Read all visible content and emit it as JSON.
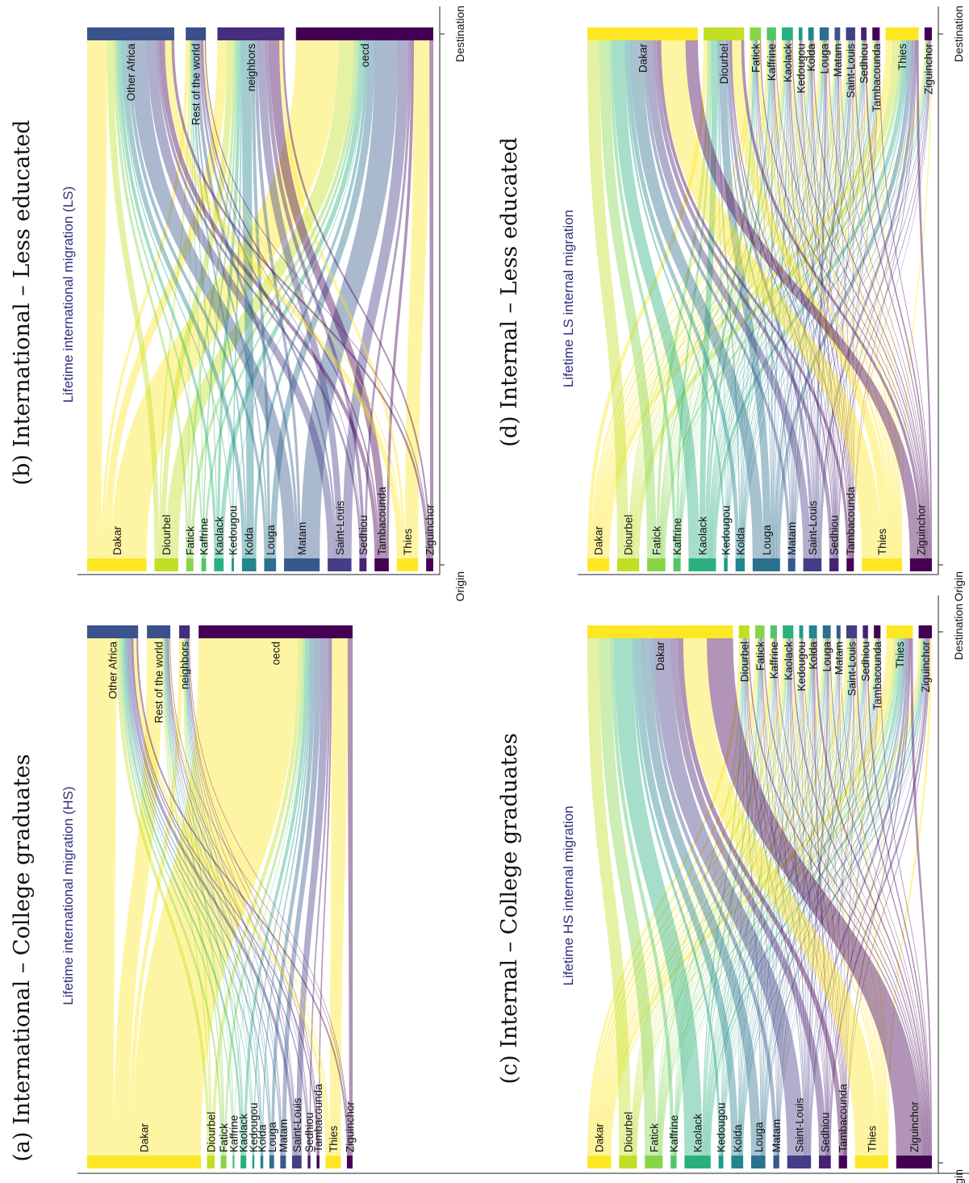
{
  "palette": {
    "Dakar": "#fde725",
    "Diourbel": "#c2df23",
    "Fatick": "#86d549",
    "Kaffrine": "#52c569",
    "Kaolack": "#2ab07f",
    "Kedougou": "#1e9b8a",
    "Kolda": "#25858e",
    "Louga": "#2d708e",
    "Matam": "#38588c",
    "Saint-Louis": "#433e85",
    "Sedhiou": "#482173",
    "Tambacounda": "#440154",
    "Thies": "#fde725",
    "Ziguinchor": "#440154",
    "Other Africa": "#3b528b",
    "Rest of the world": "#3b4f8a",
    "neighbors": "#472d7b",
    "oecd": "#440154"
  },
  "chart_data": [
    {
      "id": "a",
      "type": "sankey",
      "title": "(a) International – College graduates",
      "subtitle": "Lifetime international migration (HS)",
      "axis_labels": [
        "Origin",
        "Destination"
      ],
      "origins": [
        "Dakar",
        "Diourbel",
        "Fatick",
        "Kaffrine",
        "Kaolack",
        "Kedougou",
        "Kolda",
        "Louga",
        "Matam",
        "Saint-Louis",
        "Sedhiou",
        "Tambacounda",
        "Thies",
        "Ziguinchor"
      ],
      "origin_values": [
        120,
        8,
        6,
        2,
        6,
        2,
        3,
        5,
        6,
        10,
        3,
        3,
        16,
        6
      ],
      "destinations": [
        "Other Africa",
        "Rest of the world",
        "neighbors",
        "oecd"
      ],
      "destination_values": [
        48,
        22,
        10,
        145
      ],
      "flows": [
        [
          28,
          16,
          4,
          72
        ],
        [
          3,
          1,
          1,
          3
        ],
        [
          2,
          1,
          1,
          2
        ],
        [
          1,
          0.3,
          0.3,
          0.4
        ],
        [
          2,
          1,
          0.5,
          2.5
        ],
        [
          0.5,
          0.3,
          0.3,
          0.9
        ],
        [
          1,
          0.5,
          0.5,
          1
        ],
        [
          1,
          0.5,
          0.5,
          3
        ],
        [
          1,
          0.5,
          0.5,
          4
        ],
        [
          3,
          1,
          0.5,
          5.5
        ],
        [
          1,
          0.3,
          0.5,
          1.2
        ],
        [
          1,
          0.5,
          0.5,
          1
        ],
        [
          3,
          1,
          0.5,
          11.5
        ],
        [
          1.5,
          0.5,
          0.5,
          3.5
        ]
      ]
    },
    {
      "id": "b",
      "type": "sankey",
      "title": "(b) International – Less educated",
      "subtitle": "Lifetime international migration (LS)",
      "axis_labels": [
        "Origin",
        "Destination"
      ],
      "origins": [
        "Dakar",
        "Diourbel",
        "Fatick",
        "Kaffrine",
        "Kaolack",
        "Kedougou",
        "Kolda",
        "Louga",
        "Matam",
        "Saint-Louis",
        "Sedhiou",
        "Tambacounda",
        "Thies",
        "Ziguinchor"
      ],
      "origin_values": [
        25,
        10,
        3,
        2,
        4,
        1,
        6,
        5,
        15,
        10,
        3,
        6,
        9,
        3
      ],
      "destinations": [
        "Other Africa",
        "Rest of the world",
        "neighbors",
        "oecd"
      ],
      "destination_values": [
        26,
        6,
        20,
        41
      ],
      "flows": [
        [
          6,
          1,
          3,
          15
        ],
        [
          2,
          0.5,
          2,
          5.5
        ],
        [
          0.8,
          0.2,
          0.8,
          1.2
        ],
        [
          0.5,
          0.2,
          0.5,
          0.8
        ],
        [
          1,
          0.3,
          1,
          1.7
        ],
        [
          0.3,
          0.1,
          0.4,
          0.2
        ],
        [
          1.5,
          0.5,
          3,
          1
        ],
        [
          1,
          0.5,
          1,
          2.5
        ],
        [
          5,
          1,
          1,
          8
        ],
        [
          3,
          0.7,
          2.5,
          3.8
        ],
        [
          0.8,
          0.2,
          1.2,
          0.8
        ],
        [
          1.5,
          0.5,
          3,
          1
        ],
        [
          2,
          0.5,
          1,
          5.5
        ],
        [
          0.8,
          0.3,
          0.6,
          1.3
        ]
      ]
    },
    {
      "id": "c",
      "type": "sankey",
      "title": "(c) Internal – College graduates",
      "subtitle": "Lifetime HS internal migration",
      "axis_labels": [
        "Origin",
        "Destination"
      ],
      "origins": [
        "Dakar",
        "Diourbel",
        "Fatick",
        "Kaffrine",
        "Kaolack",
        "Kedougou",
        "Kolda",
        "Louga",
        "Matam",
        "Saint-Louis",
        "Sedhiou",
        "Tambacounda",
        "Thies",
        "Ziguinchor"
      ],
      "origin_values": [
        20,
        15,
        15,
        5,
        22,
        4,
        10,
        12,
        5,
        20,
        10,
        7,
        28,
        30
      ],
      "destinations": [
        "Dakar",
        "Diourbel",
        "Fatick",
        "Kaffrine",
        "Kaolack",
        "Kedougou",
        "Kolda",
        "Louga",
        "Matam",
        "Saint-Louis",
        "Sedhiou",
        "Tambacounda",
        "Thies",
        "Ziguinchor"
      ],
      "destination_values": [
        110,
        8,
        7,
        5,
        8,
        3,
        6,
        6,
        3,
        8,
        4,
        5,
        20,
        10
      ],
      "flows": [
        [
          0,
          2,
          2,
          2,
          2,
          1,
          1,
          1,
          1,
          2,
          1,
          1,
          3,
          1
        ],
        [
          10,
          0,
          0.5,
          0.5,
          0.5,
          0.2,
          0.3,
          0.5,
          0.2,
          0.5,
          0.2,
          0.3,
          1,
          0.3
        ],
        [
          10,
          0.5,
          0,
          0.5,
          1,
          0.2,
          0.3,
          0.3,
          0.2,
          0.5,
          0.2,
          0.3,
          1,
          0.5
        ],
        [
          3,
          0.2,
          0.2,
          0,
          0.5,
          0.1,
          0.1,
          0.2,
          0.1,
          0.2,
          0.1,
          0.1,
          0.5,
          0.1
        ],
        [
          15,
          0.8,
          1,
          0.5,
          0,
          0.3,
          0.5,
          0.5,
          0.2,
          0.8,
          0.3,
          0.4,
          1.2,
          0.5
        ],
        [
          2,
          0.2,
          0.2,
          0.1,
          0.3,
          0,
          0.2,
          0.1,
          0.1,
          0.2,
          0.1,
          0.2,
          0.2,
          0.2
        ],
        [
          6,
          0.3,
          0.3,
          0.2,
          0.5,
          0.2,
          0,
          0.3,
          0.2,
          0.3,
          0.5,
          0.3,
          0.5,
          0.6
        ],
        [
          8,
          0.5,
          0.3,
          0.2,
          0.5,
          0.1,
          0.2,
          0,
          0.2,
          0.8,
          0.1,
          0.2,
          0.7,
          0.2
        ],
        [
          3,
          0.2,
          0.1,
          0.1,
          0.2,
          0.1,
          0.1,
          0.3,
          0,
          0.4,
          0.1,
          0.1,
          0.2,
          0.1
        ],
        [
          14,
          0.5,
          0.5,
          0.3,
          0.6,
          0.3,
          0.4,
          1,
          0.5,
          0,
          0.3,
          0.3,
          1,
          0.3
        ],
        [
          6,
          0.2,
          0.2,
          0.2,
          0.3,
          0.1,
          0.8,
          0.1,
          0.1,
          0.3,
          0,
          0.2,
          0.5,
          1
        ],
        [
          4,
          0.3,
          0.2,
          0.2,
          0.3,
          0.3,
          0.2,
          0.1,
          0.2,
          0.3,
          0.2,
          0,
          0.4,
          0.3
        ],
        [
          20,
          1,
          1,
          0.5,
          1,
          0.3,
          0.5,
          0.8,
          0.3,
          1,
          0.3,
          0.3,
          0,
          1
        ],
        [
          22,
          0.8,
          0.7,
          0.5,
          0.8,
          0.3,
          1,
          0.5,
          0.3,
          0.8,
          0.9,
          0.4,
          1,
          0
        ]
      ]
    },
    {
      "id": "d",
      "type": "sankey",
      "title": "(d) Internal – Less educated",
      "subtitle": "Lifetime LS internal migration",
      "axis_labels": [
        "Origin",
        "Destination"
      ],
      "origins": [
        "Dakar",
        "Diourbel",
        "Fatick",
        "Kaffrine",
        "Kaolack",
        "Kedougou",
        "Kolda",
        "Louga",
        "Matam",
        "Saint-Louis",
        "Sedhiou",
        "Tambacounda",
        "Thies",
        "Ziguinchor"
      ],
      "origin_values": [
        12,
        12,
        10,
        4,
        15,
        2,
        5,
        15,
        4,
        10,
        5,
        4,
        22,
        12
      ],
      "destinations": [
        "Dakar",
        "Diourbel",
        "Fatick",
        "Kaffrine",
        "Kaolack",
        "Kedougou",
        "Kolda",
        "Louga",
        "Matam",
        "Saint-Louis",
        "Sedhiou",
        "Tambacounda",
        "Thies",
        "Ziguinchor"
      ],
      "destination_values": [
        60,
        22,
        6,
        5,
        6,
        2,
        3,
        5,
        3,
        5,
        3,
        4,
        18,
        4
      ],
      "flows": [
        [
          0,
          2,
          1,
          0.5,
          1,
          0.3,
          0.5,
          1,
          0.5,
          1,
          0.5,
          0.7,
          2.5,
          0.5
        ],
        [
          6,
          0,
          0.5,
          0.5,
          0.5,
          0.1,
          0.2,
          0.6,
          0.2,
          0.3,
          0.1,
          0.2,
          2.5,
          0.3
        ],
        [
          5,
          1.5,
          0,
          0.3,
          0.7,
          0.1,
          0.2,
          0.2,
          0.1,
          0.2,
          0.2,
          0.2,
          1,
          0.3
        ],
        [
          1.5,
          1,
          0.2,
          0,
          0.4,
          0.1,
          0.1,
          0.1,
          0.1,
          0.1,
          0.1,
          0.1,
          0.1,
          0.1
        ],
        [
          6,
          3,
          1,
          1,
          0,
          0.2,
          0.3,
          0.5,
          0.2,
          0.4,
          0.2,
          0.4,
          1.5,
          0.3
        ],
        [
          0.8,
          0.2,
          0.1,
          0.1,
          0.1,
          0,
          0.1,
          0.1,
          0.1,
          0.1,
          0.1,
          0.1,
          0.1,
          0.1
        ],
        [
          2,
          0.5,
          0.2,
          0.2,
          0.3,
          0.2,
          0,
          0.2,
          0.1,
          0.2,
          0.4,
          0.2,
          0.3,
          0.2
        ],
        [
          6,
          4,
          0.3,
          0.5,
          0.5,
          0.1,
          0.2,
          0,
          0.3,
          1,
          0.1,
          0.2,
          1.5,
          0.3
        ],
        [
          1.5,
          0.5,
          0.1,
          0.1,
          0.2,
          0.1,
          0.1,
          0.4,
          0,
          0.5,
          0.1,
          0.2,
          0.2,
          0.1
        ],
        [
          4,
          1.5,
          0.3,
          0.3,
          0.4,
          0.1,
          0.2,
          1,
          0.5,
          0,
          0.2,
          0.2,
          1,
          0.3
        ],
        [
          2,
          0.5,
          0.2,
          0.2,
          0.3,
          0.1,
          0.5,
          0.1,
          0.1,
          0.2,
          0,
          0.2,
          0.3,
          0.3
        ],
        [
          1.5,
          0.5,
          0.2,
          0.3,
          0.3,
          0.3,
          0.2,
          0.1,
          0.2,
          0.2,
          0.1,
          0,
          0.2,
          0.1
        ],
        [
          12,
          5,
          1.5,
          0.8,
          1,
          0.3,
          0.4,
          1,
          0.4,
          0.7,
          0.3,
          0.3,
          0,
          0.5
        ],
        [
          6,
          1.5,
          0.5,
          0.3,
          0.5,
          0.2,
          0.5,
          0.3,
          0.2,
          0.5,
          0.7,
          0.3,
          0.8,
          0
        ]
      ]
    }
  ]
}
